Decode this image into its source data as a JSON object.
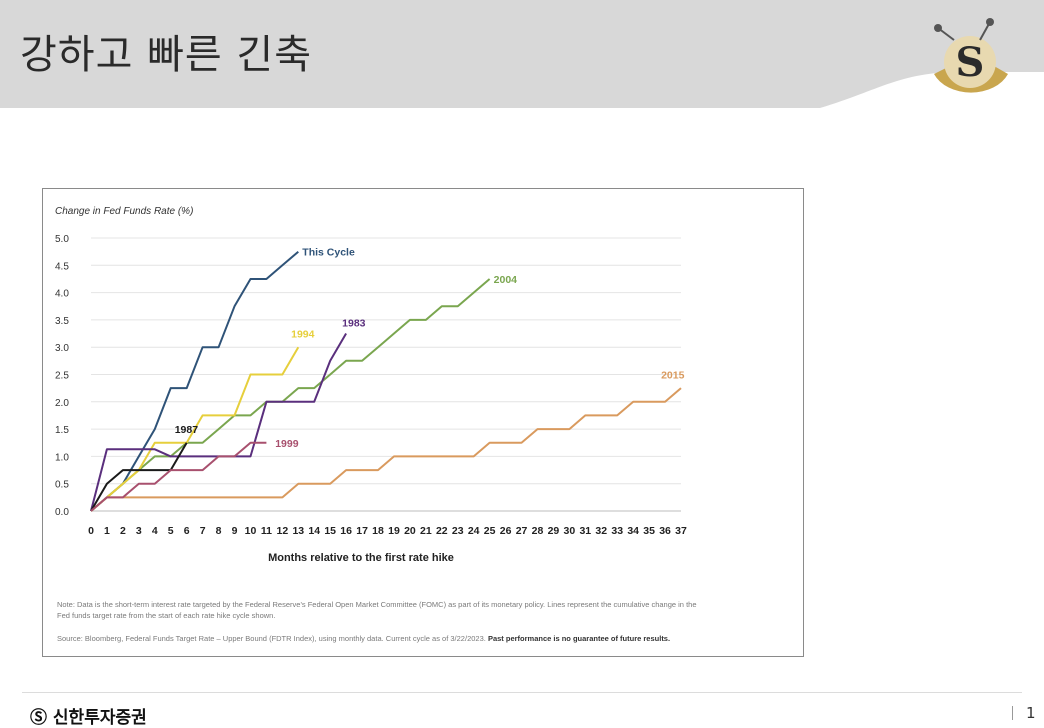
{
  "slide": {
    "title": "강하고 빠른 긴축",
    "company": "신한투자증권",
    "page_number": "1"
  },
  "chart_data": {
    "type": "line",
    "title": "",
    "ylabel": "Change in Fed Funds Rate (%)",
    "xlabel": "Months relative to the first rate hike",
    "xlim": [
      0,
      37
    ],
    "ylim": [
      0,
      5
    ],
    "x_ticks": [
      0,
      1,
      2,
      3,
      4,
      5,
      6,
      7,
      8,
      9,
      10,
      11,
      12,
      13,
      14,
      15,
      16,
      17,
      18,
      19,
      20,
      21,
      22,
      23,
      24,
      25,
      26,
      27,
      28,
      29,
      30,
      31,
      32,
      33,
      34,
      35,
      36,
      37
    ],
    "y_ticks": [
      "0.0",
      "0.5",
      "1.0",
      "1.5",
      "2.0",
      "2.5",
      "3.0",
      "3.5",
      "4.0",
      "4.5",
      "5.0"
    ],
    "grid": "horizontal",
    "series": [
      {
        "name": "This Cycle",
        "color": "#2f5378",
        "x": [
          0,
          1,
          2,
          3,
          4,
          5,
          6,
          7,
          8,
          9,
          10,
          11,
          12,
          13
        ],
        "y": [
          0,
          0.25,
          0.5,
          1.0,
          1.5,
          2.25,
          2.25,
          3.0,
          3.0,
          3.75,
          4.25,
          4.25,
          4.5,
          4.75
        ]
      },
      {
        "name": "2004",
        "color": "#7aa64f",
        "x": [
          0,
          1,
          2,
          3,
          4,
          5,
          6,
          7,
          8,
          9,
          10,
          11,
          12,
          13,
          14,
          15,
          16,
          17,
          18,
          19,
          20,
          21,
          22,
          23,
          24,
          25
        ],
        "y": [
          0,
          0.25,
          0.5,
          0.75,
          1.0,
          1.0,
          1.25,
          1.25,
          1.5,
          1.75,
          1.75,
          2.0,
          2.0,
          2.25,
          2.25,
          2.5,
          2.75,
          2.75,
          3.0,
          3.25,
          3.5,
          3.5,
          3.75,
          3.75,
          4.0,
          4.25
        ]
      },
      {
        "name": "1994",
        "color": "#e6cf3c",
        "x": [
          0,
          1,
          2,
          3,
          4,
          5,
          6,
          7,
          8,
          9,
          10,
          11,
          12,
          13
        ],
        "y": [
          0,
          0.25,
          0.5,
          0.75,
          1.25,
          1.25,
          1.25,
          1.75,
          1.75,
          1.75,
          2.5,
          2.5,
          2.5,
          3.0
        ]
      },
      {
        "name": "1983",
        "color": "#5a2f7d",
        "x": [
          0,
          1,
          2,
          3,
          4,
          5,
          6,
          7,
          8,
          9,
          10,
          11,
          12,
          13,
          14,
          15,
          16
        ],
        "y": [
          0,
          1.13,
          1.13,
          1.13,
          1.13,
          1.0,
          1.0,
          1.0,
          1.0,
          1.0,
          1.0,
          2.0,
          2.0,
          2.0,
          2.0,
          2.75,
          3.25
        ]
      },
      {
        "name": "2015",
        "color": "#d99a5e",
        "x": [
          0,
          1,
          2,
          3,
          4,
          5,
          6,
          7,
          8,
          9,
          10,
          11,
          12,
          13,
          14,
          15,
          16,
          17,
          18,
          19,
          20,
          21,
          22,
          23,
          24,
          25,
          26,
          27,
          28,
          29,
          30,
          31,
          32,
          33,
          34,
          35,
          36,
          37
        ],
        "y": [
          0,
          0.25,
          0.25,
          0.25,
          0.25,
          0.25,
          0.25,
          0.25,
          0.25,
          0.25,
          0.25,
          0.25,
          0.25,
          0.5,
          0.5,
          0.5,
          0.75,
          0.75,
          0.75,
          1.0,
          1.0,
          1.0,
          1.0,
          1.0,
          1.0,
          1.25,
          1.25,
          1.25,
          1.5,
          1.5,
          1.5,
          1.75,
          1.75,
          1.75,
          2.0,
          2.0,
          2.0,
          2.25
        ]
      },
      {
        "name": "1987",
        "color": "#1a1a1a",
        "x": [
          0,
          1,
          2,
          3,
          4,
          5,
          6
        ],
        "y": [
          0,
          0.5,
          0.75,
          0.75,
          0.75,
          0.75,
          1.25
        ]
      },
      {
        "name": "1999",
        "color": "#a8506e",
        "x": [
          0,
          1,
          2,
          3,
          4,
          5,
          6,
          7,
          8,
          9,
          10,
          11
        ],
        "y": [
          0,
          0.25,
          0.25,
          0.5,
          0.5,
          0.75,
          0.75,
          0.75,
          1.0,
          1.0,
          1.25,
          1.25
        ]
      }
    ],
    "series_labels": [
      {
        "name": "This Cycle",
        "anchor_x": 13,
        "anchor_y": 4.75
      },
      {
        "name": "2004",
        "anchor_x": 25,
        "anchor_y": 4.25
      },
      {
        "name": "1994",
        "anchor_x": 12.3,
        "anchor_y": 3.25
      },
      {
        "name": "1983",
        "anchor_x": 15.5,
        "anchor_y": 3.45
      },
      {
        "name": "2015",
        "anchor_x": 35.5,
        "anchor_y": 2.5
      },
      {
        "name": "1987",
        "anchor_x": 5,
        "anchor_y": 1.5
      },
      {
        "name": "1999",
        "anchor_x": 11.3,
        "anchor_y": 1.25
      }
    ],
    "note": "Note: Data is the short-term interest rate targeted by the Federal Reserve's Federal Open Market Committee (FOMC) as part of its monetary policy.  Lines represent the cumulative change in the Fed funds target rate from the start of each rate hike cycle shown.",
    "source": "Source: Bloomberg, Federal Funds Target Rate – Upper Bound (FDTR Index), using monthly data.  Current cycle as of 3/22/2023.",
    "disclaimer": "Past performance is no guarantee of future results."
  }
}
